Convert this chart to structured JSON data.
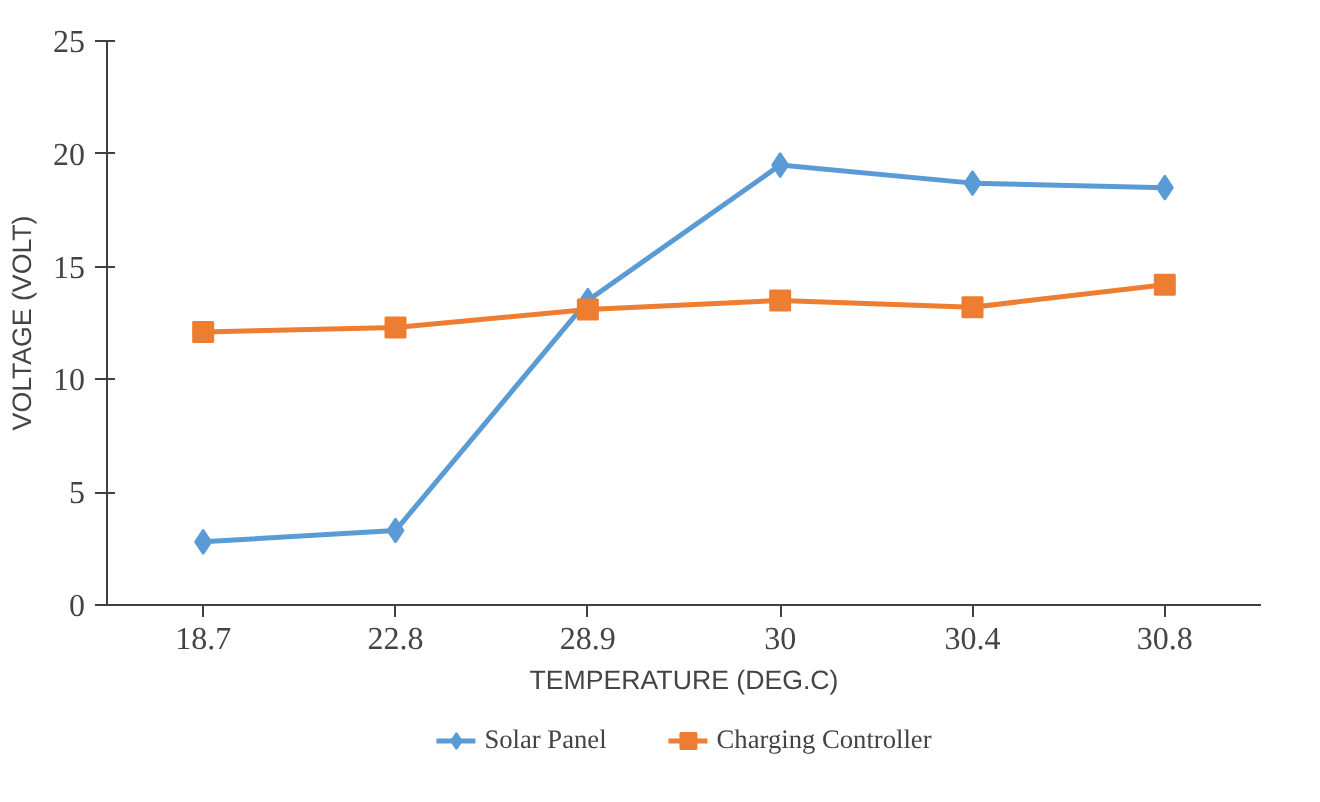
{
  "chart_data": {
    "type": "line",
    "xlabel": "TEMPERATURE (DEG.C)",
    "ylabel": "VOLTAGE (VOLT)",
    "categories": [
      "18.7",
      "22.8",
      "28.9",
      "30",
      "30.4",
      "30.8"
    ],
    "ylim": [
      0,
      25
    ],
    "yticks": [
      0,
      5,
      10,
      15,
      20,
      25
    ],
    "grid": false,
    "legend": "bottom",
    "series": [
      {
        "name": "Solar Panel",
        "color": "#5b9bd5",
        "marker": "diamond",
        "values": [
          2.8,
          3.3,
          13.5,
          19.5,
          18.7,
          18.5
        ]
      },
      {
        "name": "Charging Controller",
        "color": "#ed7d31",
        "marker": "square",
        "values": [
          12.1,
          12.3,
          13.1,
          13.5,
          13.2,
          14.2
        ]
      }
    ]
  }
}
